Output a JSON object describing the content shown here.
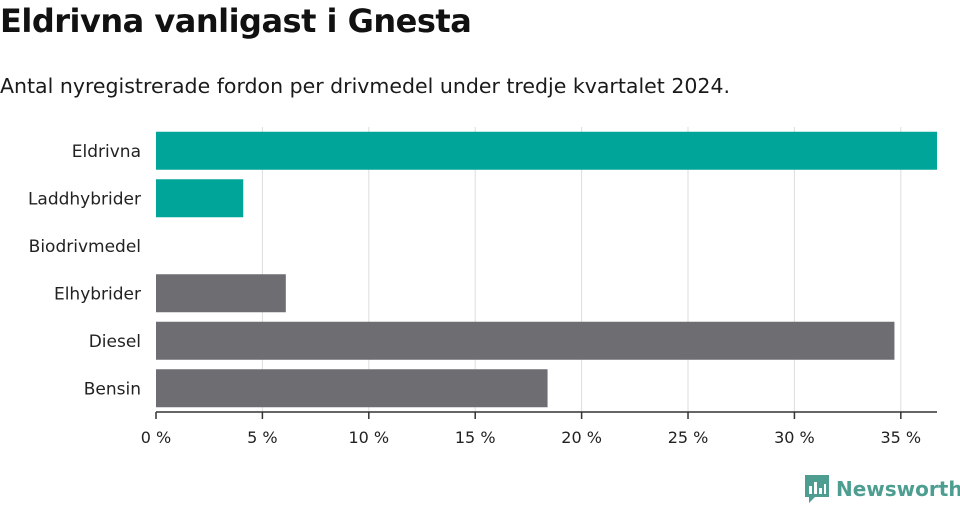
{
  "title": "Eldrivna vanligast i Gnesta",
  "subtitle": "Antal nyregistrerade fordon per drivmedel under tredje kvartalet 2024.",
  "brand": {
    "name": "Newsworthy",
    "icon": "newsworthy-logo-icon",
    "color": "#4d9e91"
  },
  "colors": {
    "highlight": "#00a59a",
    "other": "#6e6d72",
    "grid": "#dddddd",
    "axis": "#333333"
  },
  "chart_data": {
    "type": "bar",
    "orientation": "horizontal",
    "categories": [
      "Eldrivna",
      "Laddhybrider",
      "Biodrivmedel",
      "Elhybrider",
      "Diesel",
      "Bensin"
    ],
    "values": [
      36.7,
      4.1,
      0,
      6.1,
      34.7,
      18.4
    ],
    "highlighted": [
      true,
      true,
      true,
      false,
      false,
      false
    ],
    "x_ticks": [
      0,
      5,
      10,
      15,
      20,
      25,
      30,
      35
    ],
    "tick_labels": [
      "0 %",
      "5 %",
      "10 %",
      "15 %",
      "20 %",
      "25 %",
      "30 %",
      "35 %"
    ],
    "xlim": [
      0,
      36.7
    ],
    "unit": "%",
    "grid": true
  }
}
